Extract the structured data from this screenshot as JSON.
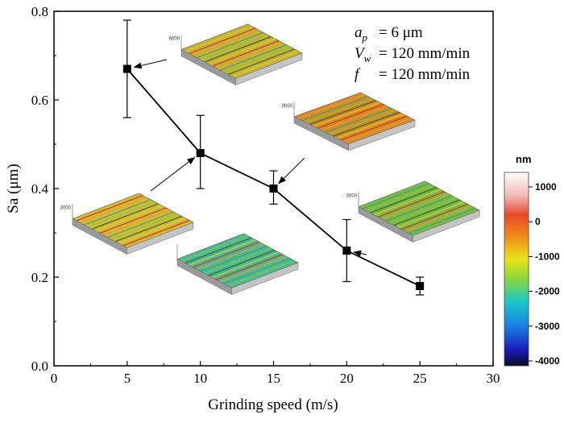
{
  "chart_data": {
    "type": "line",
    "title": "",
    "xlabel": "Grinding speed (m/s)",
    "ylabel": "Sa (μm)",
    "xlim": [
      0,
      30
    ],
    "ylim": [
      0.0,
      0.8
    ],
    "xticks": [
      "0",
      "5",
      "10",
      "15",
      "20",
      "25",
      "30"
    ],
    "yticks": [
      "0.0",
      "0.2",
      "0.4",
      "0.6",
      "0.8"
    ],
    "grid": false,
    "legend": "none",
    "series": [
      {
        "x": [
          5,
          10,
          15,
          20,
          25
        ],
        "y": [
          0.67,
          0.48,
          0.4,
          0.26,
          0.18
        ],
        "err_upper": [
          0.78,
          0.565,
          0.44,
          0.33,
          0.2
        ],
        "err_lower": [
          0.56,
          0.4,
          0.365,
          0.19,
          0.16
        ],
        "marker": "square",
        "color": "#000000"
      }
    ],
    "parameters": [
      {
        "symbol": "a",
        "sub": "p",
        "value": "= 6 μm"
      },
      {
        "symbol": "V",
        "sub": "w",
        "value": "= 120 mm/min"
      },
      {
        "symbol": "f",
        "sub": "",
        "value": "= 120 mm/min"
      }
    ],
    "colorbar": {
      "unit": "nm",
      "ticks": [
        "1000",
        "0",
        "-1000",
        "-2000",
        "-3000",
        "-4000"
      ]
    },
    "insets": [
      {
        "name": "surface-5",
        "scale_label": "6000",
        "color": "#c8b03a"
      },
      {
        "name": "surface-10",
        "scale_label": "3000",
        "color": "#d4b83a"
      },
      {
        "name": "surface-15",
        "scale_label": "3000",
        "color": "#d88a2a"
      },
      {
        "name": "surface-20",
        "scale_label": "3000",
        "color": "#7cb84a"
      },
      {
        "name": "surface-25",
        "scale_label": "",
        "color": "#4cb89a"
      }
    ]
  }
}
